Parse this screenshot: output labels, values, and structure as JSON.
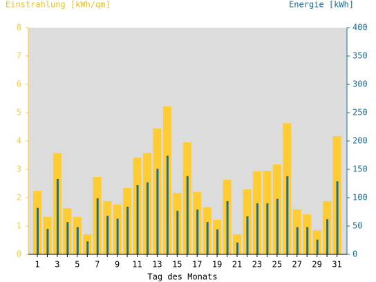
{
  "chart_data": {
    "type": "bar",
    "xlabel": "Tag des Monats",
    "categories": [
      "1",
      null,
      "3",
      null,
      "5",
      null,
      "7",
      null,
      "9",
      null,
      "11",
      null,
      "13",
      null,
      "15",
      null,
      "17",
      null,
      "19",
      null,
      "21",
      null,
      "23",
      null,
      "25",
      null,
      "27",
      null,
      "29",
      null,
      "31"
    ],
    "series": [
      {
        "name": "Einstrahlung [kWh/qm]",
        "color": "#ffcc33",
        "axis": "y",
        "values": [
          2.24,
          1.32,
          3.58,
          1.63,
          1.32,
          0.71,
          2.73,
          1.88,
          1.76,
          2.34,
          3.41,
          3.58,
          4.44,
          5.22,
          2.17,
          3.95,
          2.2,
          1.66,
          1.22,
          2.63,
          0.71,
          2.29,
          2.93,
          2.95,
          3.17,
          4.63,
          1.59,
          1.41,
          0.85,
          1.88,
          4.17
        ]
      },
      {
        "name": "Energie [kWh]",
        "color": "#1a6e94",
        "axis": "y2",
        "values": [
          82,
          45,
          133,
          57,
          48,
          23,
          99,
          68,
          63,
          84,
          122,
          127,
          151,
          174,
          77,
          138,
          79,
          57,
          44,
          94,
          21,
          67,
          90,
          90,
          98,
          138,
          48,
          48,
          26,
          62,
          129
        ]
      }
    ],
    "ylim": [
      0,
      8
    ],
    "yticks": [
      0,
      1,
      2,
      3,
      4,
      5,
      6,
      7,
      8
    ],
    "y2lim": [
      0,
      400
    ],
    "y2ticks": [
      0,
      50,
      100,
      150,
      200,
      250,
      300,
      350,
      400
    ],
    "grid": false
  }
}
